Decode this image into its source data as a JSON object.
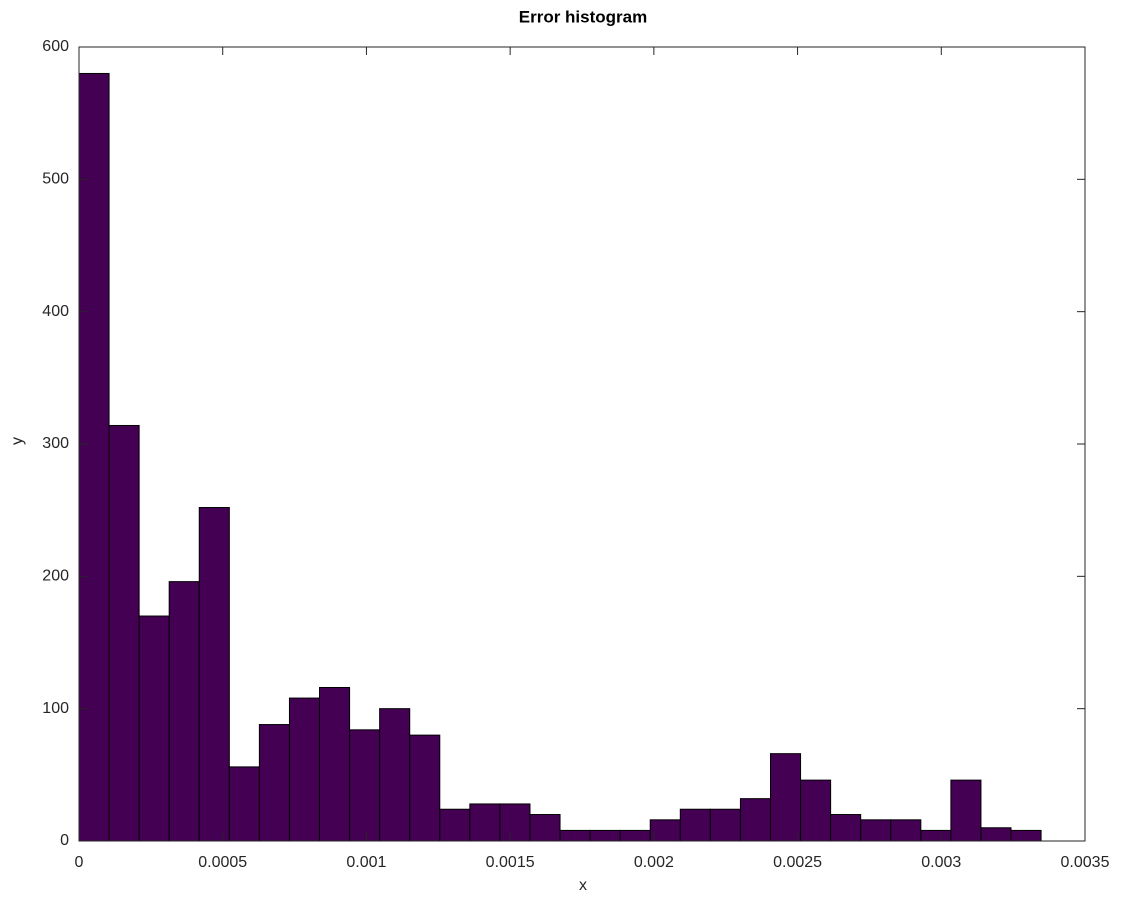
{
  "chart_data": {
    "type": "histogram",
    "title": "Error histogram",
    "x_label": "x",
    "y_label": "y",
    "bins": [
      0,
      0.0001046,
      0.0002092,
      0.0003138,
      0.0004184,
      0.000523,
      0.0006276,
      0.0007322,
      0.0008368,
      0.0009414,
      0.001046,
      0.0011506,
      0.0012552,
      0.0013598,
      0.0014644,
      0.001569,
      0.0016736,
      0.0017782,
      0.0018828,
      0.0019874,
      0.002092,
      0.0021966,
      0.0023012,
      0.0024058,
      0.0025104,
      0.002615,
      0.0027196,
      0.0028242,
      0.0029288,
      0.0030334,
      0.003138,
      0.0032426,
      0.0033472
    ],
    "values": [
      580,
      314,
      170,
      196,
      252,
      56,
      88,
      108,
      116,
      84,
      100,
      80,
      24,
      28,
      28,
      20,
      8,
      8,
      8,
      16,
      24,
      24,
      32,
      66,
      46,
      20,
      16,
      16,
      8,
      46,
      10,
      8
    ],
    "color": "#440154",
    "edge_color": "#000000",
    "xlim": [
      0,
      0.0035
    ],
    "xticks": [
      0,
      0.0005,
      0.001,
      0.0015,
      0.002,
      0.0025,
      0.003,
      0.0035
    ],
    "ylim": [
      0,
      600
    ],
    "yticks": [
      0,
      100,
      200,
      300,
      400,
      500,
      600
    ],
    "grid": false
  }
}
